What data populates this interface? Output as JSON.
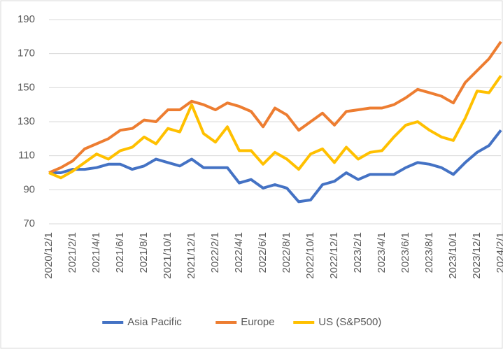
{
  "chart_data": {
    "type": "line",
    "categories": [
      "2020/12/1",
      null,
      "2021/2/1",
      null,
      "2021/4/1",
      null,
      "2021/6/1",
      null,
      "2021/8/1",
      null,
      "2021/10/1",
      null,
      "2021/12/1",
      null,
      "2022/2/1",
      null,
      "2022/4/1",
      null,
      "2022/6/1",
      null,
      "2022/8/1",
      null,
      "2022/10/1",
      null,
      "2022/12/1",
      null,
      "2023/2/1",
      null,
      "2023/4/1",
      null,
      "2023/6/1",
      null,
      "2023/8/1",
      null,
      "2023/10/1",
      null,
      "2023/12/1",
      null,
      "2024/2/1"
    ],
    "series": [
      {
        "name": "Asia Pacific",
        "color": "#4472c4",
        "values": [
          100,
          100,
          102,
          102,
          103,
          105,
          105,
          102,
          104,
          108,
          106,
          104,
          108,
          103,
          103,
          103,
          94,
          96,
          91,
          93,
          91,
          83,
          84,
          93,
          95,
          100,
          96,
          99,
          99,
          99,
          103,
          106,
          105,
          103,
          99,
          106,
          112,
          116,
          125
        ]
      },
      {
        "name": "Europe",
        "color": "#ed7d31",
        "values": [
          100,
          103,
          107,
          114,
          117,
          120,
          125,
          126,
          131,
          130,
          137,
          137,
          142,
          140,
          137,
          141,
          139,
          136,
          127,
          138,
          134,
          125,
          130,
          135,
          128,
          136,
          137,
          138,
          138,
          140,
          144,
          149,
          147,
          145,
          141,
          153,
          160,
          167,
          177
        ]
      },
      {
        "name": "US (S&P500)",
        "color": "#ffc000",
        "values": [
          100,
          97,
          101,
          106,
          111,
          108,
          113,
          115,
          121,
          117,
          126,
          124,
          140,
          123,
          118,
          127,
          113,
          113,
          105,
          112,
          108,
          102,
          111,
          114,
          106,
          115,
          108,
          112,
          113,
          121,
          128,
          130,
          125,
          121,
          119,
          132,
          148,
          147,
          157
        ]
      }
    ],
    "ylim": [
      70,
      190
    ],
    "yticks": [
      70,
      90,
      110,
      130,
      150,
      170,
      190
    ],
    "grid": true,
    "legend": "bottom"
  }
}
